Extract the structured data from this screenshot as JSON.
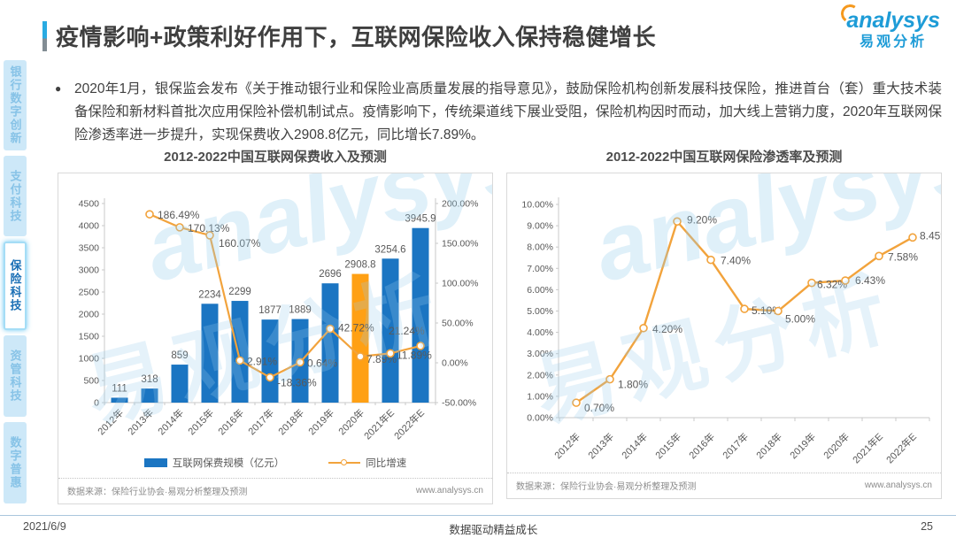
{
  "header": {
    "title": "疫情影响+政策利好作用下，互联网保险收入保持稳健增长",
    "logo": {
      "brand": "analysys",
      "brand_cn": "易观分析",
      "brand_blue": "#1e9cd7",
      "brand_orange": "#f5991e"
    }
  },
  "sidebar": {
    "items": [
      {
        "key": "banking-digital-innovation",
        "label": "银行数字创新",
        "active": false
      },
      {
        "key": "payment-tech",
        "label": "支付科技",
        "active": false
      },
      {
        "key": "insurance-tech",
        "label": "保险科技",
        "active": true
      },
      {
        "key": "asset-management-tech",
        "label": "资管科技",
        "active": false
      },
      {
        "key": "digital-inclusion",
        "label": "数字普惠",
        "active": false
      }
    ]
  },
  "summary": {
    "bullet": "●",
    "text": "2020年1月，银保监会发布《关于推动银行业和保险业高质量发展的指导意见》，鼓励保险机构创新发展科技保险，推进首台（套）重大技术装备保险和新材料首批次应用保险补偿机制试点。疫情影响下，传统渠道线下展业受阻，保险机构因时而动，加大线上营销力度，2020年互联网保险渗透率进一步提升，实现保费收入2908.8亿元，同比增长7.89%。"
  },
  "watermark": {
    "en": "analysys",
    "cn": "易观分析"
  },
  "chart_data": [
    {
      "type": "bar",
      "title": "2012-2022中国互联网保费收入及预测",
      "categories": [
        "2012年",
        "2013年",
        "2014年",
        "2015年",
        "2016年",
        "2017年",
        "2018年",
        "2019年",
        "2020年",
        "2021年E",
        "2022年E"
      ],
      "series": [
        {
          "name": "互联网保费规模（亿元）",
          "type": "bar",
          "values": [
            111,
            318,
            859,
            2234,
            2299,
            1877,
            1889,
            2696,
            2908.8,
            3254.6,
            3945.9
          ],
          "value_labels": [
            "111",
            "318",
            "859",
            "2234",
            "2299",
            "1877",
            "1889",
            "2696",
            "2908.8",
            "3254.6",
            "3945.9"
          ],
          "color": "#1b75c2",
          "highlight_index": 8,
          "highlight_color": "#ffa014"
        },
        {
          "name": "同比增速",
          "type": "line",
          "values": [
            null,
            186.49,
            170.13,
            160.07,
            2.91,
            -18.36,
            0.64,
            42.72,
            7.89,
            11.89,
            21.24
          ],
          "value_labels": [
            "",
            "186.49%",
            "170.13%",
            "160.07%",
            "2.91%",
            "-18.36%",
            "0.64%",
            "42.72%",
            "7.89%",
            "11.89%",
            "21.24%"
          ],
          "color": "#f2a33c"
        }
      ],
      "left_axis": {
        "min": 0,
        "max": 4500,
        "step": 500,
        "ticks": [
          "0",
          "500",
          "1000",
          "1500",
          "2000",
          "2500",
          "3000",
          "3500",
          "4000",
          "4500"
        ]
      },
      "right_axis": {
        "min": -50,
        "max": 200,
        "step": 50,
        "ticks": [
          "-50.00%",
          "0.00%",
          "50.00%",
          "100.00%",
          "150.00%",
          "200.00%"
        ]
      },
      "legend": [
        {
          "label": "互联网保费规模（亿元）",
          "swatch": "bar"
        },
        {
          "label": "同比增速",
          "swatch": "line"
        }
      ],
      "source": "数据来源：保险行业协会·易观分析整理及预测",
      "site": "www.analysys.cn"
    },
    {
      "type": "line",
      "title": "2012-2022中国互联网保险渗透率及预测",
      "categories": [
        "2012年",
        "2013年",
        "2014年",
        "2015年",
        "2016年",
        "2017年",
        "2018年",
        "2019年",
        "2020年",
        "2021年E",
        "2022年E"
      ],
      "values": [
        0.7,
        1.8,
        4.2,
        9.2,
        7.4,
        5.1,
        5.0,
        6.32,
        6.43,
        7.58,
        8.45
      ],
      "value_labels": [
        "0.70%",
        "1.80%",
        "4.20%",
        "9.20%",
        "7.40%",
        "5.10%",
        "5.00%",
        "6.32%",
        "6.43%",
        "7.58%",
        "8.45%"
      ],
      "color": "#f2a33c",
      "y_axis": {
        "min": 0,
        "max": 10,
        "step": 1,
        "ticks": [
          "0.00%",
          "1.00%",
          "2.00%",
          "3.00%",
          "4.00%",
          "5.00%",
          "6.00%",
          "7.00%",
          "8.00%",
          "9.00%",
          "10.00%"
        ]
      },
      "legend": [],
      "source": "数据来源：保险行业协会·易观分析整理及预测",
      "site": "www.analysys.cn"
    }
  ],
  "footer": {
    "date": "2021/6/9",
    "slogan": "数据驱动精益成长",
    "page": "25"
  }
}
